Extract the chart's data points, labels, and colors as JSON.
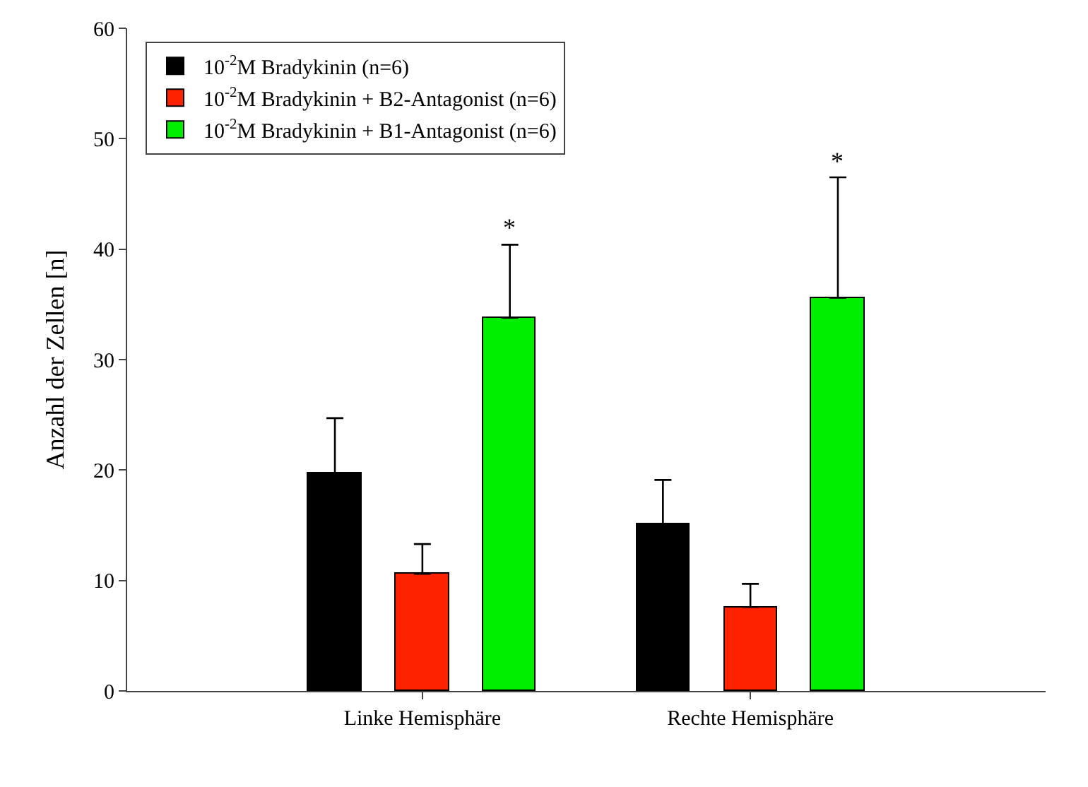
{
  "chart_data": {
    "type": "bar",
    "ylabel": "Anzahl der Zellen [n]",
    "categories": [
      "Linke Hemisphäre",
      "Rechte Hemisphäre"
    ],
    "series": [
      {
        "name": "10$^{-2}$M Bradykinin (n=6)",
        "color": "#000000",
        "values": [
          19.7,
          15.1
        ],
        "errors": [
          5.0,
          4.0
        ]
      },
      {
        "name": "10$^{-2}$M Bradykinin + B2-Antagonist (n=6)",
        "color": "#ff2200",
        "values": [
          10.6,
          7.6
        ],
        "errors": [
          2.7,
          2.1
        ]
      },
      {
        "name": "10$^{-2}$M Bradykinin + B1-Antagonist (n=6)",
        "color": "#00ee00",
        "values": [
          33.8,
          35.6
        ],
        "errors": [
          6.6,
          10.9
        ]
      }
    ],
    "annotations": [
      "*",
      "*"
    ],
    "ylim": [
      0,
      60
    ],
    "yticks": [
      0,
      10,
      20,
      30,
      40,
      50,
      60
    ],
    "legend": "top left"
  }
}
